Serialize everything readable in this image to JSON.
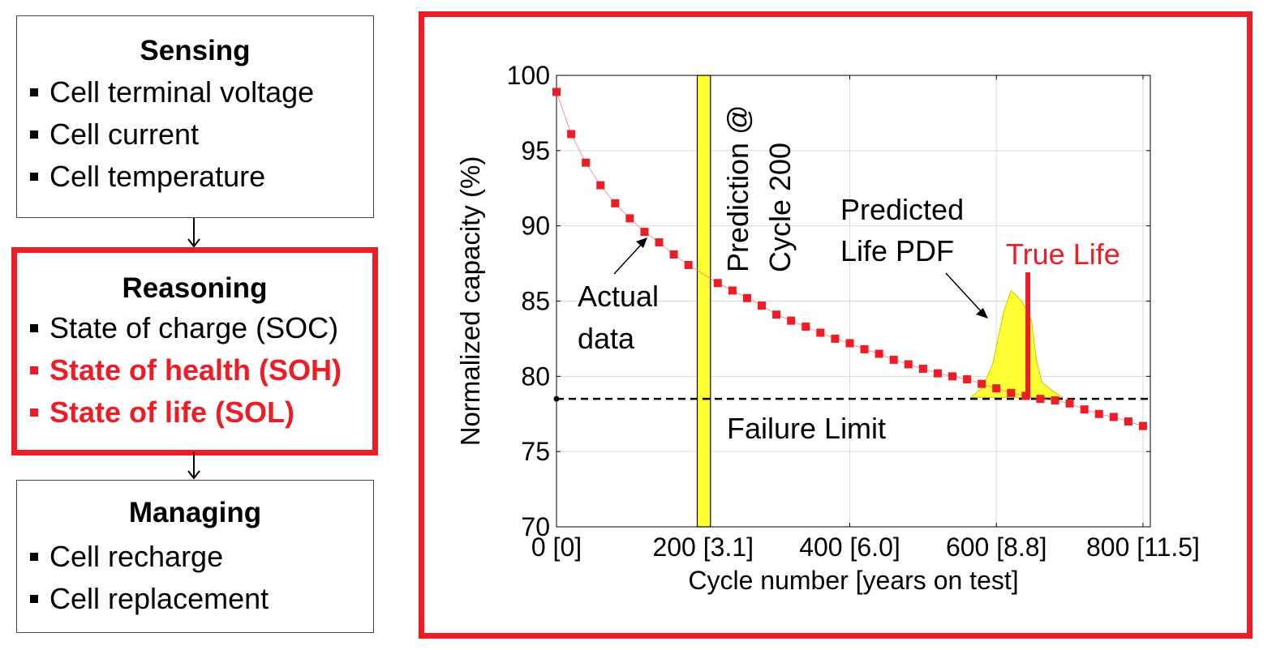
{
  "flow": {
    "sensing": {
      "title": "Sensing",
      "items": [
        "Cell terminal voltage",
        "Cell current",
        "Cell temperature"
      ]
    },
    "reasoning": {
      "title": "Reasoning",
      "items": [
        "State of charge (SOC)",
        "State of health (SOH)",
        "State of life (SOL)"
      ],
      "highlighted_items": [
        "State of health (SOH)",
        "State of life (SOL)"
      ]
    },
    "managing": {
      "title": "Managing",
      "items": [
        "Cell recharge",
        "Cell replacement"
      ]
    }
  },
  "colors": {
    "highlight": "#ee1c25",
    "data_marker": "#ee1c25",
    "prediction_band": "#ffff33",
    "pdf_fill": "#ffff33",
    "true_life_line": "#ee1c25"
  },
  "chart_data": {
    "type": "scatter",
    "xlabel": "Cycle number [years on test]",
    "ylabel": "Normalized capacity (%)",
    "xlim": [
      0,
      810
    ],
    "ylim": [
      70,
      100
    ],
    "grid": true,
    "x_ticks": [
      {
        "value": 0,
        "label": "0 [0]"
      },
      {
        "value": 200,
        "label": "200 [3.1]"
      },
      {
        "value": 400,
        "label": "400 [6.0]"
      },
      {
        "value": 600,
        "label": "600 [8.8]"
      },
      {
        "value": 800,
        "label": "800 [11.5]"
      }
    ],
    "y_ticks": [
      70,
      75,
      80,
      85,
      90,
      95,
      100
    ],
    "series": [
      {
        "x": [
          0,
          20,
          40,
          60,
          80,
          100,
          120,
          140,
          160,
          180,
          220,
          240,
          260,
          280,
          300,
          320,
          340,
          360,
          380,
          400,
          420,
          440,
          460,
          480,
          500,
          520,
          540,
          560,
          580,
          600,
          620,
          640,
          660,
          680,
          700,
          720,
          740,
          760,
          780,
          800
        ],
        "y": [
          98.9,
          96.1,
          94.2,
          92.7,
          91.5,
          90.5,
          89.6,
          88.9,
          88.1,
          87.4,
          86.2,
          85.7,
          85.2,
          84.7,
          84.1,
          83.7,
          83.3,
          82.9,
          82.5,
          82.2,
          81.8,
          81.5,
          81.1,
          80.8,
          80.5,
          80.2,
          80.0,
          79.8,
          79.5,
          79.2,
          78.9,
          78.7,
          78.5,
          78.4,
          78.2,
          77.8,
          77.5,
          77.3,
          77.0,
          76.7
        ]
      }
    ],
    "failure_limit": 78.5,
    "prediction_band": {
      "x_from": 192,
      "x_to": 210
    },
    "true_life_x": 643,
    "pdf": [
      [
        565,
        78.6
      ],
      [
        580,
        79.2
      ],
      [
        595,
        80.8
      ],
      [
        610,
        84.3
      ],
      [
        620,
        85.7
      ],
      [
        635,
        85.0
      ],
      [
        648,
        83.7
      ],
      [
        655,
        81.0
      ],
      [
        662,
        79.6
      ],
      [
        675,
        79.1
      ],
      [
        690,
        78.6
      ]
    ],
    "annotations": {
      "actual_data": [
        "Actual",
        "data"
      ],
      "prediction": [
        "Prediction @",
        "Cycle 200"
      ],
      "predicted_pdf": [
        "Predicted",
        "Life PDF"
      ],
      "true_life": "True Life",
      "failure_limit": "Failure Limit"
    }
  }
}
